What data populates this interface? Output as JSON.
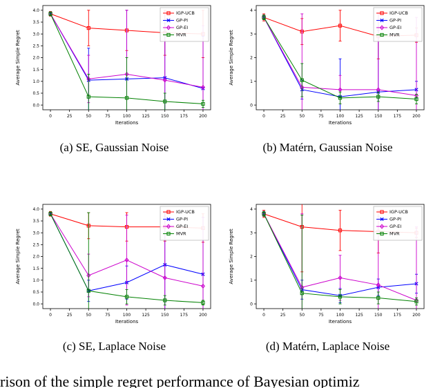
{
  "figure": {
    "caption_fragment": "rison of the simple regret performance of Bayesian optimiz"
  },
  "chart_data": [
    {
      "type": "line",
      "subcaption": "(a) SE, Gaussian Noise",
      "xlabel": "Iterations",
      "ylabel": "Average Simple Regret",
      "xlim": [
        0,
        200
      ],
      "ylim": [
        0,
        4.0
      ],
      "xticks": [
        "0",
        "25",
        "50",
        "75",
        "100",
        "125",
        "150",
        "175",
        "200"
      ],
      "yticks": [
        "0.0",
        "0.5",
        "1.0",
        "1.5",
        "2.0",
        "2.5",
        "3.0",
        "3.5",
        "4.0"
      ],
      "x": [
        0,
        50,
        100,
        150,
        200
      ],
      "legend_position": "upper right",
      "series": [
        {
          "name": "IGP-UCB",
          "color": "#ff0000",
          "marker": "square",
          "values": [
            3.85,
            3.25,
            3.15,
            3.05,
            3.0
          ],
          "err": [
            0.1,
            0.75,
            0.85,
            0.95,
            1.0
          ]
        },
        {
          "name": "GP-PI",
          "color": "#0000ff",
          "marker": "x",
          "values": [
            3.85,
            1.05,
            1.1,
            1.15,
            0.7
          ],
          "err": [
            0.08,
            1.35,
            2.9,
            2.3,
            2.2
          ]
        },
        {
          "name": "GP-EI",
          "color": "#cc00cc",
          "marker": "diamond",
          "values": [
            3.85,
            1.1,
            1.3,
            1.05,
            0.75
          ],
          "err": [
            0.08,
            1.0,
            2.7,
            2.9,
            2.6
          ]
        },
        {
          "name": "MVR",
          "color": "#008000",
          "marker": "square",
          "values": [
            3.85,
            0.35,
            0.3,
            0.15,
            0.05
          ],
          "err": [
            0.08,
            0.95,
            1.7,
            0.35,
            0.15
          ]
        }
      ]
    },
    {
      "type": "line",
      "subcaption": "(b) Matérn, Gaussian Noise",
      "xlabel": "Iterations",
      "ylabel": "Average Simple Regret",
      "xlim": [
        0,
        200
      ],
      "ylim": [
        0,
        4
      ],
      "xticks": [
        "0",
        "25",
        "50",
        "75",
        "100",
        "125",
        "150",
        "175",
        "200"
      ],
      "yticks": [
        "0",
        "1",
        "2",
        "3",
        "4"
      ],
      "x": [
        0,
        50,
        100,
        150,
        200
      ],
      "legend_position": "upper right",
      "series": [
        {
          "name": "IGP-UCB",
          "color": "#ff0000",
          "marker": "square",
          "values": [
            3.7,
            3.1,
            3.35,
            2.9,
            2.95
          ],
          "err": [
            0.15,
            0.55,
            0.65,
            0.95,
            0.3
          ]
        },
        {
          "name": "GP-PI",
          "color": "#0000ff",
          "marker": "x",
          "values": [
            3.7,
            0.65,
            0.35,
            0.55,
            0.65
          ],
          "err": [
            0.1,
            0.4,
            1.6,
            2.6,
            0.35
          ]
        },
        {
          "name": "GP-EI",
          "color": "#cc00cc",
          "marker": "diamond",
          "values": [
            3.7,
            0.75,
            0.65,
            0.65,
            0.4
          ],
          "err": [
            0.1,
            3.1,
            0.6,
            3.2,
            3.3
          ]
        },
        {
          "name": "MVR",
          "color": "#008000",
          "marker": "square",
          "values": [
            3.7,
            1.05,
            0.3,
            0.35,
            0.25
          ],
          "err": [
            0.1,
            0.7,
            0.25,
            0.2,
            0.2
          ]
        }
      ]
    },
    {
      "type": "line",
      "subcaption": "(c) SE, Laplace Noise",
      "xlabel": "Iterations",
      "ylabel": "Average Simple Regret",
      "xlim": [
        0,
        200
      ],
      "ylim": [
        0,
        4.0
      ],
      "xticks": [
        "0",
        "25",
        "50",
        "75",
        "100",
        "125",
        "150",
        "175",
        "200"
      ],
      "yticks": [
        "0.0",
        "0.5",
        "1.0",
        "1.5",
        "2.0",
        "2.5",
        "3.0",
        "3.5",
        "4.0"
      ],
      "x": [
        0,
        50,
        100,
        150,
        200
      ],
      "legend_position": "upper right",
      "series": [
        {
          "name": "IGP-UCB",
          "color": "#ff0000",
          "marker": "square",
          "values": [
            3.8,
            3.3,
            3.25,
            3.25,
            3.2
          ],
          "err": [
            0.1,
            0.55,
            0.6,
            0.6,
            0.6
          ]
        },
        {
          "name": "GP-PI",
          "color": "#0000ff",
          "marker": "x",
          "values": [
            3.8,
            0.55,
            0.9,
            1.65,
            1.25
          ],
          "err": [
            0.08,
            0.45,
            0.7,
            2.2,
            2.4
          ]
        },
        {
          "name": "GP-EI",
          "color": "#cc00cc",
          "marker": "diamond",
          "values": [
            3.8,
            1.2,
            1.85,
            1.1,
            0.75
          ],
          "err": [
            0.08,
            0.9,
            1.9,
            2.6,
            2.9
          ]
        },
        {
          "name": "MVR",
          "color": "#008000",
          "marker": "square",
          "values": [
            3.8,
            0.55,
            0.3,
            0.15,
            0.05
          ],
          "err": [
            0.08,
            3.3,
            0.3,
            0.2,
            0.1
          ]
        }
      ]
    },
    {
      "type": "line",
      "subcaption": "(d) Matérn, Laplace Noise",
      "xlabel": "Iterations",
      "ylabel": "Average Simple Regret",
      "xlim": [
        0,
        200
      ],
      "ylim": [
        0,
        4
      ],
      "xticks": [
        "0",
        "25",
        "50",
        "75",
        "100",
        "125",
        "150",
        "175",
        "200"
      ],
      "yticks": [
        "0",
        "1",
        "2",
        "3",
        "4"
      ],
      "x": [
        0,
        50,
        100,
        150,
        200
      ],
      "legend_position": "upper right",
      "series": [
        {
          "name": "IGP-UCB",
          "color": "#ff0000",
          "marker": "square",
          "values": [
            3.8,
            3.25,
            3.1,
            3.05,
            3.0
          ],
          "err": [
            0.15,
            1.9,
            0.85,
            0.9,
            0.2
          ]
        },
        {
          "name": "GP-PI",
          "color": "#0000ff",
          "marker": "x",
          "values": [
            3.8,
            0.6,
            0.35,
            0.7,
            0.85
          ],
          "err": [
            0.1,
            0.4,
            0.3,
            0.35,
            0.4
          ]
        },
        {
          "name": "GP-EI",
          "color": "#cc00cc",
          "marker": "diamond",
          "values": [
            3.8,
            0.7,
            1.1,
            0.8,
            0.15
          ],
          "err": [
            0.1,
            3.1,
            0.95,
            2.9,
            3.1
          ]
        },
        {
          "name": "MVR",
          "color": "#008000",
          "marker": "square",
          "values": [
            3.8,
            0.45,
            0.3,
            0.25,
            0.1
          ],
          "err": [
            0.1,
            3.3,
            0.3,
            0.25,
            0.15
          ]
        }
      ]
    }
  ]
}
